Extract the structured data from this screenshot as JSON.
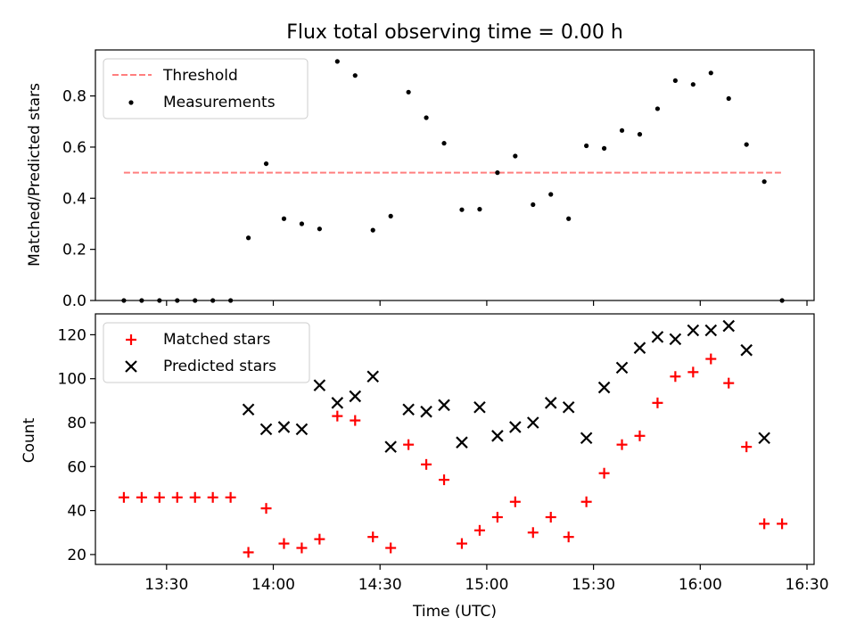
{
  "chart_data": [
    {
      "type": "scatter",
      "title": "Flux total observing time = 0.00 h",
      "xlabel": "",
      "ylabel": "Matched/Predicted stars",
      "xlim": [
        "13:10",
        "16:32"
      ],
      "ylim": [
        0,
        0.98
      ],
      "yticks": [
        "0.0",
        "0.2",
        "0.4",
        "0.6",
        "0.8"
      ],
      "threshold": {
        "name": "Threshold",
        "value": 0.5,
        "x_range": [
          "13:18",
          "16:23"
        ],
        "color": "#ff7f7f"
      },
      "series": [
        {
          "name": "Measurements",
          "color": "#000000",
          "points": [
            [
              "13:18",
              0.0
            ],
            [
              "13:23",
              0.0
            ],
            [
              "13:28",
              0.0
            ],
            [
              "13:33",
              0.0
            ],
            [
              "13:38",
              0.0
            ],
            [
              "13:43",
              0.0
            ],
            [
              "13:48",
              0.0
            ],
            [
              "13:53",
              0.245
            ],
            [
              "13:58",
              0.535
            ],
            [
              "14:03",
              0.32
            ],
            [
              "14:08",
              0.3
            ],
            [
              "14:13",
              0.28
            ],
            [
              "14:18",
              0.935
            ],
            [
              "14:23",
              0.88
            ],
            [
              "14:28",
              0.275
            ],
            [
              "14:33",
              0.33
            ],
            [
              "14:38",
              0.815
            ],
            [
              "14:43",
              0.715
            ],
            [
              "14:48",
              0.615
            ],
            [
              "14:53",
              0.355
            ],
            [
              "14:58",
              0.357
            ],
            [
              "15:03",
              0.5
            ],
            [
              "15:08",
              0.565
            ],
            [
              "15:13",
              0.375
            ],
            [
              "15:18",
              0.415
            ],
            [
              "15:23",
              0.32
            ],
            [
              "15:28",
              0.605
            ],
            [
              "15:33",
              0.595
            ],
            [
              "15:38",
              0.665
            ],
            [
              "15:43",
              0.65
            ],
            [
              "15:48",
              0.75
            ],
            [
              "15:53",
              0.86
            ],
            [
              "15:58",
              0.845
            ],
            [
              "16:03",
              0.89
            ],
            [
              "16:08",
              0.79
            ],
            [
              "16:13",
              0.61
            ],
            [
              "16:18",
              0.465
            ],
            [
              "16:23",
              0.0
            ]
          ]
        }
      ],
      "legend": "top-left"
    },
    {
      "type": "scatter",
      "title": "",
      "xlabel": "Time (UTC)",
      "ylabel": "Count",
      "xlim": [
        "13:10",
        "16:32"
      ],
      "ylim": [
        15.5,
        129.5
      ],
      "yticks": [
        "20",
        "40",
        "60",
        "80",
        "100",
        "120"
      ],
      "xticks": [
        "13:30",
        "14:00",
        "14:30",
        "15:00",
        "15:30",
        "16:00",
        "16:30"
      ],
      "series": [
        {
          "name": "Matched stars",
          "marker": "+",
          "color": "#ff0000",
          "points": [
            [
              "13:18",
              46
            ],
            [
              "13:23",
              46
            ],
            [
              "13:28",
              46
            ],
            [
              "13:33",
              46
            ],
            [
              "13:38",
              46
            ],
            [
              "13:43",
              46
            ],
            [
              "13:48",
              46
            ],
            [
              "13:53",
              21
            ],
            [
              "13:58",
              41
            ],
            [
              "14:03",
              25
            ],
            [
              "14:08",
              23
            ],
            [
              "14:13",
              27
            ],
            [
              "14:18",
              83
            ],
            [
              "14:23",
              81
            ],
            [
              "14:28",
              28
            ],
            [
              "14:33",
              23
            ],
            [
              "14:38",
              70
            ],
            [
              "14:43",
              61
            ],
            [
              "14:48",
              54
            ],
            [
              "14:53",
              25
            ],
            [
              "14:58",
              31
            ],
            [
              "15:03",
              37
            ],
            [
              "15:08",
              44
            ],
            [
              "15:13",
              30
            ],
            [
              "15:18",
              37
            ],
            [
              "15:23",
              28
            ],
            [
              "15:28",
              44
            ],
            [
              "15:33",
              57
            ],
            [
              "15:38",
              70
            ],
            [
              "15:43",
              74
            ],
            [
              "15:48",
              89
            ],
            [
              "15:53",
              101
            ],
            [
              "15:58",
              103
            ],
            [
              "16:03",
              109
            ],
            [
              "16:08",
              98
            ],
            [
              "16:13",
              69
            ],
            [
              "16:18",
              34
            ],
            [
              "16:23",
              34
            ]
          ]
        },
        {
          "name": "Predicted stars",
          "marker": "x",
          "color": "#000000",
          "points": [
            [
              "13:53",
              86
            ],
            [
              "13:58",
              77
            ],
            [
              "14:03",
              78
            ],
            [
              "14:08",
              77
            ],
            [
              "14:13",
              97
            ],
            [
              "14:18",
              89
            ],
            [
              "14:23",
              92
            ],
            [
              "14:28",
              101
            ],
            [
              "14:33",
              69
            ],
            [
              "14:38",
              86
            ],
            [
              "14:43",
              85
            ],
            [
              "14:48",
              88
            ],
            [
              "14:53",
              71
            ],
            [
              "14:58",
              87
            ],
            [
              "15:03",
              74
            ],
            [
              "15:08",
              78
            ],
            [
              "15:13",
              80
            ],
            [
              "15:18",
              89
            ],
            [
              "15:23",
              87
            ],
            [
              "15:28",
              73
            ],
            [
              "15:33",
              96
            ],
            [
              "15:38",
              105
            ],
            [
              "15:43",
              114
            ],
            [
              "15:48",
              119
            ],
            [
              "15:53",
              118
            ],
            [
              "15:58",
              122
            ],
            [
              "16:03",
              122
            ],
            [
              "16:08",
              124
            ],
            [
              "16:13",
              113
            ],
            [
              "16:18",
              73
            ]
          ]
        }
      ],
      "legend": "top-left"
    }
  ]
}
